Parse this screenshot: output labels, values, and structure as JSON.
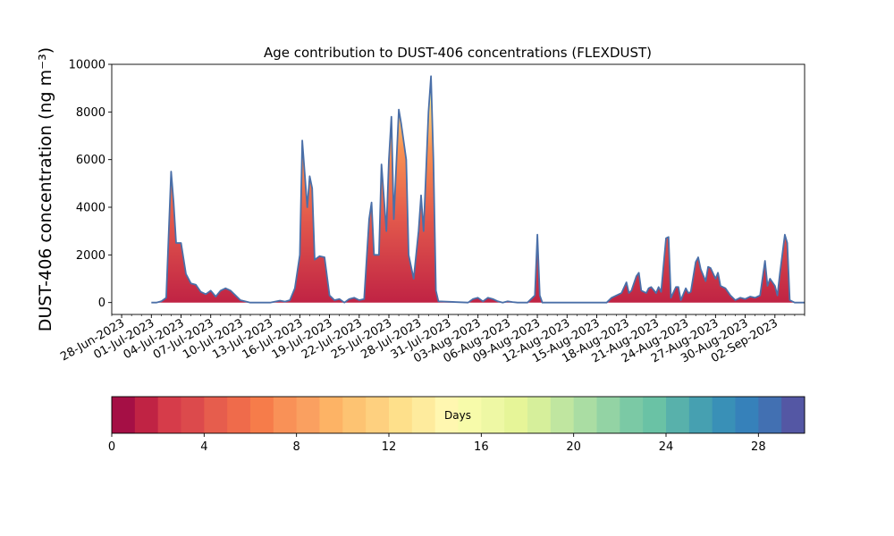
{
  "chart_data": {
    "type": "area",
    "title": "Age contribution to DUST-406 concentrations (FLEXDUST)",
    "ylabel": "DUST-406 concentration (ng m⁻³)",
    "xlabel": "",
    "ylim": [
      -500,
      10000
    ],
    "xlim": [
      "2023-06-27",
      "2023-09-05"
    ],
    "grid": false,
    "y_ticks": [
      0,
      2000,
      4000,
      6000,
      8000,
      10000
    ],
    "x_tick_labels": [
      "28-Jun-2023",
      "01-Jul-2023",
      "04-Jul-2023",
      "07-Jul-2023",
      "10-Jul-2023",
      "13-Jul-2023",
      "16-Jul-2023",
      "19-Jul-2023",
      "22-Jul-2023",
      "25-Jul-2023",
      "28-Jul-2023",
      "31-Jul-2023",
      "03-Aug-2023",
      "06-Aug-2023",
      "09-Aug-2023",
      "12-Aug-2023",
      "15-Aug-2023",
      "18-Aug-2023",
      "21-Aug-2023",
      "24-Aug-2023",
      "27-Aug-2023",
      "30-Aug-2023",
      "02-Sep-2023"
    ],
    "total_series": {
      "name": "",
      "color": "#4a6fa8",
      "points": [
        [
          "2023-07-01",
          0
        ],
        [
          "2023-07-01T12",
          0
        ],
        [
          "2023-07-02",
          50
        ],
        [
          "2023-07-02T12",
          200
        ],
        [
          "2023-07-03",
          5500
        ],
        [
          "2023-07-03T06",
          4200
        ],
        [
          "2023-07-03T12",
          2500
        ],
        [
          "2023-07-04",
          2500
        ],
        [
          "2023-07-04T12",
          1200
        ],
        [
          "2023-07-05",
          800
        ],
        [
          "2023-07-05T12",
          750
        ],
        [
          "2023-07-06",
          450
        ],
        [
          "2023-07-06T12",
          350
        ],
        [
          "2023-07-07",
          500
        ],
        [
          "2023-07-07T12",
          250
        ],
        [
          "2023-07-08",
          500
        ],
        [
          "2023-07-08T12",
          600
        ],
        [
          "2023-07-09",
          500
        ],
        [
          "2023-07-09T12",
          300
        ],
        [
          "2023-07-10",
          100
        ],
        [
          "2023-07-11",
          0
        ],
        [
          "2023-07-13",
          0
        ],
        [
          "2023-07-14",
          80
        ],
        [
          "2023-07-14T12",
          40
        ],
        [
          "2023-07-15",
          100
        ],
        [
          "2023-07-15T12",
          600
        ],
        [
          "2023-07-16",
          2000
        ],
        [
          "2023-07-16T06",
          6800
        ],
        [
          "2023-07-16T18",
          4000
        ],
        [
          "2023-07-17",
          5300
        ],
        [
          "2023-07-17T06",
          4800
        ],
        [
          "2023-07-17T12",
          1800
        ],
        [
          "2023-07-18",
          1950
        ],
        [
          "2023-07-18T12",
          1900
        ],
        [
          "2023-07-19",
          300
        ],
        [
          "2023-07-19T12",
          100
        ],
        [
          "2023-07-20",
          150
        ],
        [
          "2023-07-20T12",
          0
        ],
        [
          "2023-07-21",
          150
        ],
        [
          "2023-07-21T12",
          200
        ],
        [
          "2023-07-22",
          100
        ],
        [
          "2023-07-22T12",
          150
        ],
        [
          "2023-07-23",
          3500
        ],
        [
          "2023-07-23T06",
          4200
        ],
        [
          "2023-07-23T12",
          2000
        ],
        [
          "2023-07-24",
          2000
        ],
        [
          "2023-07-24T06",
          5800
        ],
        [
          "2023-07-24T18",
          3000
        ],
        [
          "2023-07-25",
          6000
        ],
        [
          "2023-07-25T06",
          7800
        ],
        [
          "2023-07-25T12",
          3500
        ],
        [
          "2023-07-26",
          8100
        ],
        [
          "2023-07-26T06",
          7500
        ],
        [
          "2023-07-26T18",
          6000
        ],
        [
          "2023-07-27",
          2000
        ],
        [
          "2023-07-27T12",
          1000
        ],
        [
          "2023-07-28",
          3000
        ],
        [
          "2023-07-28T06",
          4500
        ],
        [
          "2023-07-28T12",
          3000
        ],
        [
          "2023-07-29",
          8000
        ],
        [
          "2023-07-29T06",
          9500
        ],
        [
          "2023-07-29T12",
          6000
        ],
        [
          "2023-07-29T18",
          500
        ],
        [
          "2023-07-30",
          50
        ],
        [
          "2023-08-02",
          0
        ],
        [
          "2023-08-02T12",
          150
        ],
        [
          "2023-08-03",
          200
        ],
        [
          "2023-08-03T12",
          50
        ],
        [
          "2023-08-04",
          200
        ],
        [
          "2023-08-04T12",
          150
        ],
        [
          "2023-08-05",
          50
        ],
        [
          "2023-08-05T12",
          0
        ],
        [
          "2023-08-06",
          50
        ],
        [
          "2023-08-06T12",
          20
        ],
        [
          "2023-08-07",
          0
        ],
        [
          "2023-08-08",
          0
        ],
        [
          "2023-08-08T18",
          300
        ],
        [
          "2023-08-09",
          2850
        ],
        [
          "2023-08-09T06",
          300
        ],
        [
          "2023-08-09T12",
          0
        ],
        [
          "2023-08-11",
          0
        ],
        [
          "2023-08-16",
          0
        ],
        [
          "2023-08-16T12",
          200
        ],
        [
          "2023-08-17",
          300
        ],
        [
          "2023-08-17T12",
          400
        ],
        [
          "2023-08-18",
          850
        ],
        [
          "2023-08-18T06",
          400
        ],
        [
          "2023-08-18T12",
          500
        ],
        [
          "2023-08-19",
          1100
        ],
        [
          "2023-08-19T06",
          1250
        ],
        [
          "2023-08-19T12",
          500
        ],
        [
          "2023-08-20",
          400
        ],
        [
          "2023-08-20T06",
          600
        ],
        [
          "2023-08-20T12",
          650
        ],
        [
          "2023-08-21",
          400
        ],
        [
          "2023-08-21T06",
          650
        ],
        [
          "2023-08-21T12",
          450
        ],
        [
          "2023-08-22",
          2700
        ],
        [
          "2023-08-22T06",
          2750
        ],
        [
          "2023-08-22T12",
          200
        ],
        [
          "2023-08-23",
          650
        ],
        [
          "2023-08-23T06",
          650
        ],
        [
          "2023-08-23T12",
          100
        ],
        [
          "2023-08-24",
          600
        ],
        [
          "2023-08-24T06",
          400
        ],
        [
          "2023-08-24T12",
          450
        ],
        [
          "2023-08-25",
          1700
        ],
        [
          "2023-08-25T06",
          1900
        ],
        [
          "2023-08-25T12",
          1400
        ],
        [
          "2023-08-26",
          900
        ],
        [
          "2023-08-26T06",
          1500
        ],
        [
          "2023-08-26T12",
          1450
        ],
        [
          "2023-08-27",
          1000
        ],
        [
          "2023-08-27T06",
          1250
        ],
        [
          "2023-08-27T12",
          700
        ],
        [
          "2023-08-28",
          600
        ],
        [
          "2023-08-28T12",
          300
        ],
        [
          "2023-08-29",
          100
        ],
        [
          "2023-08-29T12",
          200
        ],
        [
          "2023-08-30",
          150
        ],
        [
          "2023-08-30T12",
          250
        ],
        [
          "2023-08-31",
          200
        ],
        [
          "2023-08-31T12",
          300
        ],
        [
          "2023-09-01",
          1750
        ],
        [
          "2023-09-01T06",
          700
        ],
        [
          "2023-09-01T12",
          1000
        ],
        [
          "2023-09-02",
          700
        ],
        [
          "2023-09-02T06",
          300
        ],
        [
          "2023-09-02T12",
          1200
        ],
        [
          "2023-09-03",
          2850
        ],
        [
          "2023-09-03T06",
          2500
        ],
        [
          "2023-09-03T12",
          100
        ],
        [
          "2023-09-04",
          0
        ],
        [
          "2023-09-05",
          0
        ]
      ]
    },
    "colorbar": {
      "label": "Days",
      "min": 0,
      "max": 30,
      "ticks": [
        0,
        4,
        8,
        12,
        16,
        20,
        24,
        28
      ],
      "bin_colors": [
        "#a50f45",
        "#c02344",
        "#d63c4a",
        "#dc4a4c",
        "#e65d4d",
        "#ef6b4b",
        "#f67c4a",
        "#f99157",
        "#faa060",
        "#fdb365",
        "#fdc372",
        "#fed07f",
        "#fee08b",
        "#feeb9d",
        "#fff7b0",
        "#f7fbaa",
        "#eef8a4",
        "#e6f598",
        "#d6ef9b",
        "#c0e6a0",
        "#aadda3",
        "#93d3a4",
        "#7bc9a5",
        "#6ac2a5",
        "#58b1ab",
        "#46a0b1",
        "#3990b7",
        "#3681ba",
        "#4270b2",
        "#5457a4"
      ]
    }
  }
}
